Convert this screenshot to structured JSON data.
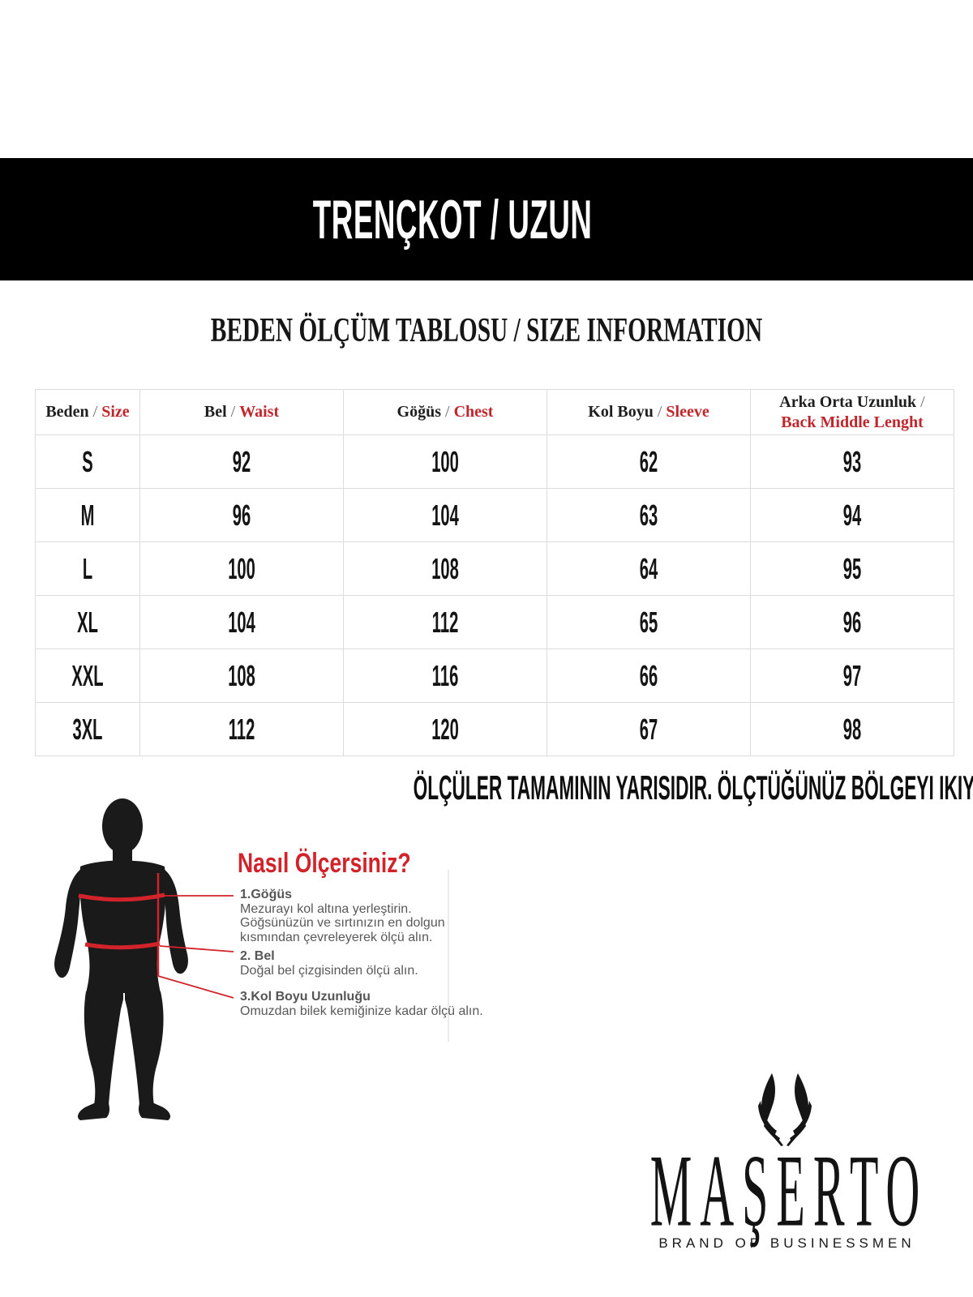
{
  "banner": {
    "title": "TRENÇKOT / UZUN"
  },
  "heading": "BEDEN ÖLÇÜM TABLOSU / SIZE INFORMATION",
  "size_table": {
    "columns": [
      {
        "tr": "Beden",
        "en": "Size",
        "wrap": false
      },
      {
        "tr": "Bel",
        "en": "Waist",
        "wrap": false
      },
      {
        "tr": "Göğüs",
        "en": "Chest",
        "wrap": false
      },
      {
        "tr": "Kol Boyu",
        "en": "Sleeve",
        "wrap": false
      },
      {
        "tr": "Arka Orta Uzunluk",
        "en": "Back Middle Lenght",
        "wrap": true
      }
    ],
    "rows": [
      [
        "S",
        "92",
        "100",
        "62",
        "93"
      ],
      [
        "M",
        "96",
        "104",
        "63",
        "94"
      ],
      [
        "L",
        "100",
        "108",
        "64",
        "95"
      ],
      [
        "XL",
        "104",
        "112",
        "65",
        "96"
      ],
      [
        "XXL",
        "108",
        "116",
        "66",
        "97"
      ],
      [
        "3XL",
        "112",
        "120",
        "67",
        "98"
      ]
    ]
  },
  "note": "ÖLÇÜLER TAMAMININ YARISIDIR. ÖLÇTÜĞÜNÜZ BÖLGEYI IKIYE BOLEREK TABLODA BEDENINIZI BULUNUZ.",
  "measure_guide": {
    "title": "Nasıl Ölçersiniz?",
    "steps": [
      {
        "label": "1.Göğüs",
        "lines": [
          "Mezurayı kol altına yerleştirin.",
          "Göğsünüzün ve sırtınızın en dolgun",
          "kısmından çevreleyerek ölçü alın."
        ]
      },
      {
        "label": "2. Bel",
        "lines": [
          "Doğal bel çizgisinden ölçü alın."
        ]
      },
      {
        "label": "3.Kol Boyu Uzunluğu",
        "lines": [
          "Omuzdan bilek kemiğinize kadar ölçü alın."
        ]
      }
    ]
  },
  "brand": {
    "wordmark": "MAŞERTO",
    "tagline": "BRAND OF BUSINESSMEN"
  },
  "colors": {
    "banner_bg": "#000000",
    "table_border": "#dcdcdc",
    "header_red": "#c0272d",
    "guide_red": "#d2232a",
    "text_dark": "#1f1f1f",
    "guide_text_gray": "#595959"
  }
}
